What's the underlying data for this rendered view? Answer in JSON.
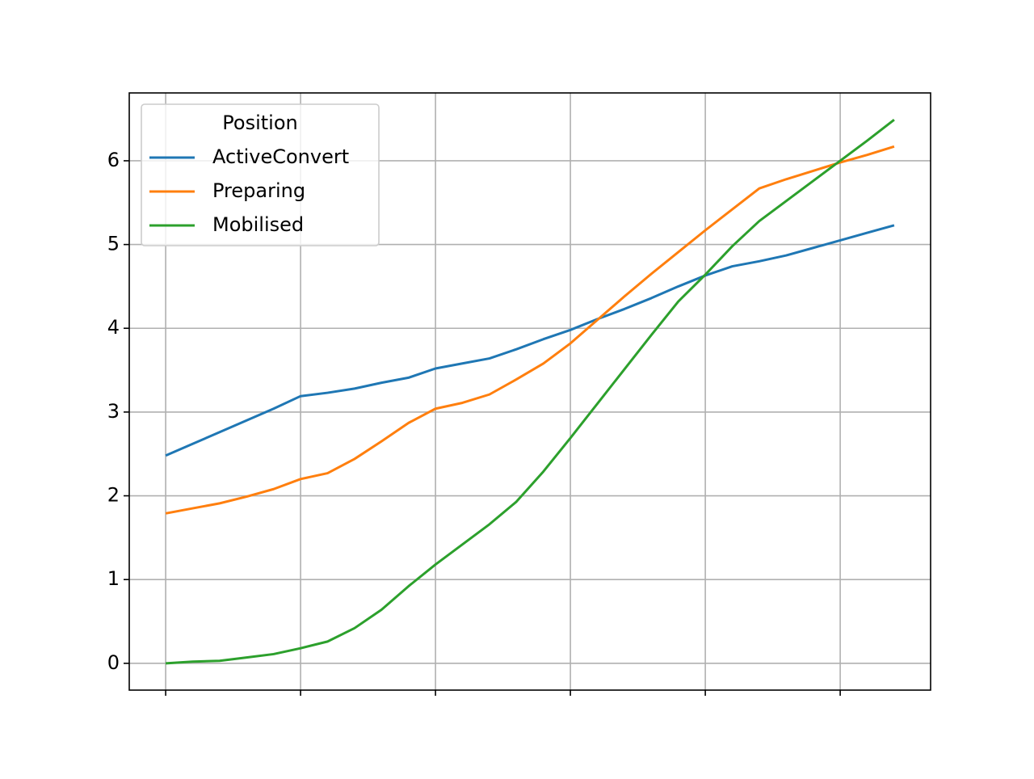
{
  "chart_data": {
    "type": "line",
    "x": [
      0,
      1,
      2,
      3,
      4,
      5,
      6,
      7,
      8,
      9,
      10,
      11,
      12,
      13,
      14,
      15,
      16,
      17,
      18,
      19,
      20,
      21,
      22,
      23,
      24,
      25,
      26,
      27
    ],
    "xlim": [
      -1.35,
      28.35
    ],
    "xticks": [
      0,
      5,
      10,
      15,
      20,
      25
    ],
    "ylim": [
      -0.32,
      6.81
    ],
    "yticks": [
      0,
      1,
      2,
      3,
      4,
      5,
      6
    ],
    "grid": true,
    "legend_title": "Position",
    "legend": "upper left",
    "series": [
      {
        "name": "ActiveConvert",
        "color": "#1f77b4",
        "values": [
          2.48,
          2.62,
          2.76,
          2.9,
          3.04,
          3.19,
          3.23,
          3.28,
          3.35,
          3.41,
          3.52,
          3.58,
          3.64,
          3.75,
          3.87,
          3.98,
          4.11,
          4.23,
          4.36,
          4.5,
          4.63,
          4.74,
          4.8,
          4.87,
          4.96,
          5.05,
          5.14,
          5.23
        ]
      },
      {
        "name": "Preparing",
        "color": "#ff7f0e",
        "values": [
          1.79,
          1.85,
          1.91,
          1.99,
          2.08,
          2.2,
          2.27,
          2.44,
          2.65,
          2.87,
          3.04,
          3.11,
          3.21,
          3.39,
          3.58,
          3.82,
          4.1,
          4.38,
          4.65,
          4.91,
          5.17,
          5.42,
          5.67,
          5.78,
          5.88,
          5.98,
          6.07,
          6.17
        ]
      },
      {
        "name": "Mobilised",
        "color": "#2ca02c",
        "values": [
          0,
          0.02,
          0.03,
          0.07,
          0.11,
          0.18,
          0.26,
          0.42,
          0.64,
          0.92,
          1.18,
          1.42,
          1.66,
          1.93,
          2.29,
          2.69,
          3.1,
          3.51,
          3.92,
          4.32,
          4.64,
          4.98,
          5.28,
          5.52,
          5.76,
          6.0,
          6.24,
          6.49
        ]
      }
    ]
  }
}
